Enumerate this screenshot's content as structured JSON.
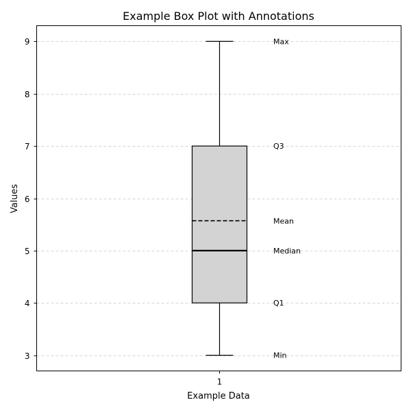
{
  "chart_data": {
    "type": "box",
    "title": "Example Box Plot with Annotations",
    "xlabel": "Example Data",
    "ylabel": "Values",
    "categories": [
      "1"
    ],
    "ylim": [
      2.7,
      9.3
    ],
    "yticks": [
      3,
      4,
      5,
      6,
      7,
      8,
      9
    ],
    "grid": "y-dashed",
    "box": {
      "min": 3,
      "q1": 4,
      "median": 5,
      "mean": 5.57,
      "q3": 7,
      "max": 9
    },
    "annotations": [
      {
        "label": "Max",
        "value": 9
      },
      {
        "label": "Q3",
        "value": 7
      },
      {
        "label": "Mean",
        "value": 5.57
      },
      {
        "label": "Median",
        "value": 5
      },
      {
        "label": "Q1",
        "value": 4
      },
      {
        "label": "Min",
        "value": 3
      }
    ],
    "colors": {
      "box_fill": "#d3d3d3",
      "lines": "#000000",
      "grid": "#c8c8c8"
    }
  }
}
